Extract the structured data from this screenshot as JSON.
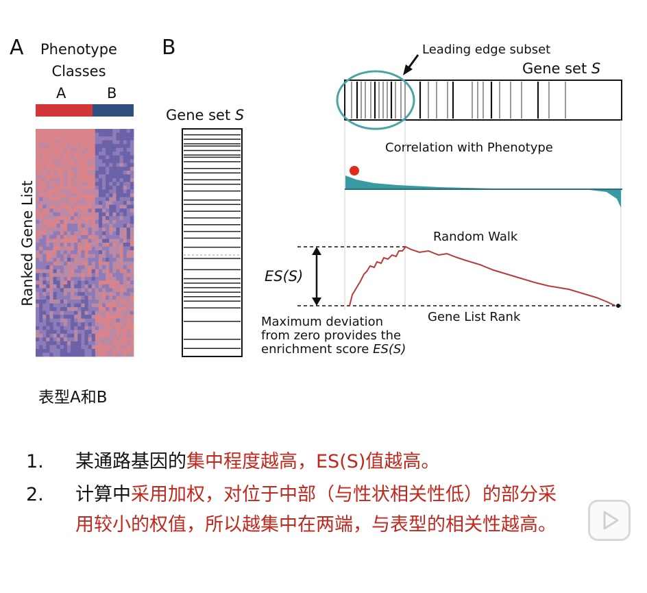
{
  "panel_a": {
    "letter": "A",
    "title_line1": "Phenotype",
    "title_line2": "Classes",
    "class_a": "A",
    "class_b": "B",
    "ylabel": "Ranked Gene List",
    "class_a_color": "#d3363a",
    "class_b_color": "#2f4f80"
  },
  "panel_b": {
    "letter": "B",
    "gene_set_label": "Gene set",
    "gene_set_var": "S",
    "leading_edge": "Leading edge subset",
    "top_gene_set_label": "Gene set",
    "top_gene_set_var": "S",
    "correlation_title": "Correlation with Phenotype",
    "random_walk_title": "Random Walk",
    "es_label": "ES(S)",
    "xlabel": "Gene List Rank",
    "note_line1": "Maximum deviation",
    "note_line2": "from zero provides the",
    "note_line3": "enrichment score",
    "note_var": "ES(S)",
    "teal_color": "#3a9aa3",
    "walk_color": "#b83a3a"
  },
  "caption": "表型A和B",
  "notes": [
    {
      "num": "1.",
      "black": "某通路基因的",
      "red": "集中程度越高，ES(S)值越高。"
    },
    {
      "num": "2.",
      "black": "计算中",
      "red": "采用加权，对位于中部（与性状相关性低）的部分采用较小的权值，所以越集中在两端，与表型的相关性越高。"
    }
  ],
  "icons": {
    "arrow": "arrow-icon",
    "play": "play-icon"
  }
}
